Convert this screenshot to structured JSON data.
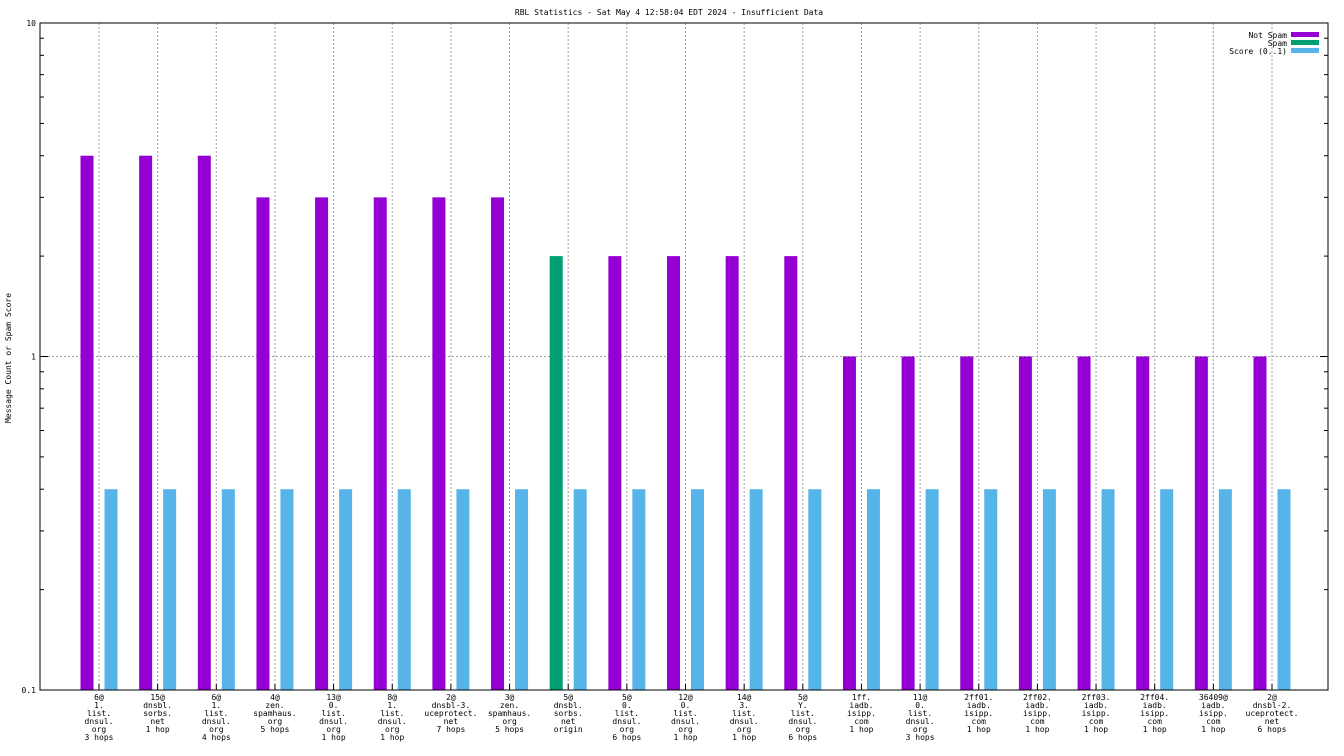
{
  "chart_data": {
    "type": "bar",
    "title": "RBL Statistics - Sat May  4 12:58:04 EDT 2024 - Insufficient Data",
    "ylabel": "Message Count or Spam Score",
    "xlabel": "",
    "yscale": "log",
    "ylim": [
      0.1,
      10
    ],
    "yticks": [
      {
        "value": 0.1,
        "label": "0.1"
      },
      {
        "value": 1,
        "label": "1"
      },
      {
        "value": 10,
        "label": "10"
      }
    ],
    "grid": true,
    "legend_position": "top-right",
    "categories": [
      [
        "6@",
        "1.",
        "list.",
        "dnsul.",
        "org",
        "3 hops"
      ],
      [
        "15@",
        "dnsbl.",
        "sorbs.",
        "net",
        "1 hop"
      ],
      [
        "6@",
        "1.",
        "list.",
        "dnsul.",
        "org",
        "4 hops"
      ],
      [
        "4@",
        "zen.",
        "spamhaus.",
        "org",
        "5 hops"
      ],
      [
        "13@",
        "0.",
        "list.",
        "dnsul.",
        "org",
        "1 hop"
      ],
      [
        "8@",
        "1.",
        "list.",
        "dnsul.",
        "org",
        "1 hop"
      ],
      [
        "2@",
        "dnsbl-3.",
        "uceprotect.",
        "net",
        "7 hops"
      ],
      [
        "3@",
        "zen.",
        "spamhaus.",
        "org",
        "5 hops"
      ],
      [
        "5@",
        "dnsbl.",
        "sorbs.",
        "net",
        "origin"
      ],
      [
        "5@",
        "0.",
        "list.",
        "dnsul.",
        "org",
        "6 hops"
      ],
      [
        "12@",
        "0.",
        "list.",
        "dnsul.",
        "org",
        "1 hop"
      ],
      [
        "14@",
        "3.",
        "list.",
        "dnsul.",
        "org",
        "1 hop"
      ],
      [
        "5@",
        "Y.",
        "list.",
        "dnsul.",
        "org",
        "6 hops"
      ],
      [
        "1ff.",
        "iadb.",
        "isipp.",
        "com",
        "1 hop"
      ],
      [
        "11@",
        "0.",
        "list.",
        "dnsul.",
        "org",
        "3 hops"
      ],
      [
        "2ff01.",
        "iadb.",
        "isipp.",
        "com",
        "1 hop"
      ],
      [
        "2ff02.",
        "iadb.",
        "isipp.",
        "com",
        "1 hop"
      ],
      [
        "2ff03.",
        "iadb.",
        "isipp.",
        "com",
        "1 hop"
      ],
      [
        "2ff04.",
        "iadb.",
        "isipp.",
        "com",
        "1 hop"
      ],
      [
        "36409@",
        "iadb.",
        "isipp.",
        "com",
        "1 hop"
      ],
      [
        "2@",
        "dnsbl-2.",
        "uceprotect.",
        "net",
        "6 hops"
      ]
    ],
    "series": [
      {
        "name": "Not Spam",
        "color": "#9400d3",
        "values": [
          4,
          4,
          4,
          3,
          3,
          3,
          3,
          3,
          null,
          2,
          2,
          2,
          2,
          1,
          1,
          1,
          1,
          1,
          1,
          1,
          1
        ]
      },
      {
        "name": "Spam",
        "color": "#009e73",
        "values": [
          null,
          null,
          null,
          null,
          null,
          null,
          null,
          null,
          2,
          null,
          null,
          null,
          null,
          null,
          null,
          null,
          null,
          null,
          null,
          null,
          null
        ]
      },
      {
        "name": "Score (0..1)",
        "color": "#56b4e9",
        "values": [
          0.4,
          0.4,
          0.4,
          0.4,
          0.4,
          0.4,
          0.4,
          0.4,
          0.4,
          0.4,
          0.4,
          0.4,
          0.4,
          0.4,
          0.4,
          0.4,
          0.4,
          0.4,
          0.4,
          0.4,
          0.4
        ]
      }
    ]
  }
}
